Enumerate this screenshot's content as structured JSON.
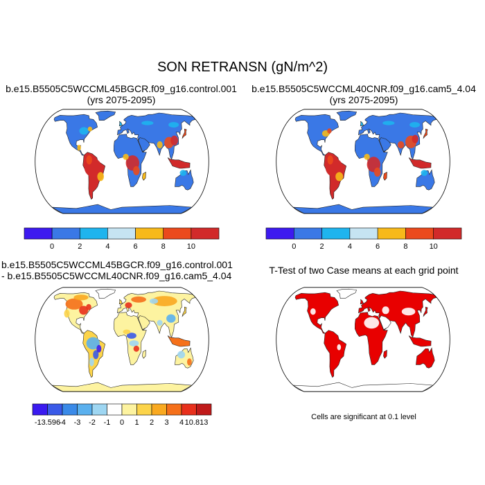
{
  "title": "SON RETRANSN (gN/m^2)",
  "panels": [
    {
      "title_line1": "b.e15.B5505C5WCCML45BGCR.f09_g16.control.001",
      "title_line2": "(yrs 2075-2095)"
    },
    {
      "title_line1": "b.e15.B5505C5WCCML40CNR.f09_g16.cam5_4.04",
      "title_line2": "(yrs 2075-2095)"
    },
    {
      "title_line1": "b.e15.B5505C5WCCML45BGCR.f09_g16.control.001",
      "title_line2": "- b.e15.B5505C5WCCML40CNR.f09_g16.cam5_4.04"
    },
    {
      "title_line1": "T-Test of two Case means at each grid point",
      "title_line2": ""
    }
  ],
  "significance_note": "Cells are significant at 0.1 level",
  "chart_data": [
    {
      "type": "heatmap",
      "subtype": "world-map",
      "panel": 1,
      "colorbar": {
        "colors": [
          "#3d1af0",
          "#3a78e6",
          "#1eb4ee",
          "#c6e4f2",
          "#f7b91a",
          "#eb4a1c",
          "#d12a2a"
        ],
        "labels": [
          "0",
          "2",
          "4",
          "6",
          "8",
          "10"
        ]
      }
    },
    {
      "type": "heatmap",
      "subtype": "world-map",
      "panel": 2,
      "colorbar": {
        "colors": [
          "#3d1af0",
          "#3a78e6",
          "#1eb4ee",
          "#c6e4f2",
          "#f7b91a",
          "#eb4a1c",
          "#d12a2a"
        ],
        "labels": [
          "0",
          "2",
          "4",
          "6",
          "8",
          "10"
        ]
      }
    },
    {
      "type": "heatmap",
      "subtype": "world-map",
      "panel": 3,
      "colorbar": {
        "colors": [
          "#3a1af0",
          "#3a5ae8",
          "#3a8ae8",
          "#5ab0ee",
          "#9ed6f2",
          "#ffffff",
          "#fdf3a0",
          "#fcd44a",
          "#f9a920",
          "#f5701a",
          "#e8301c",
          "#c01a1a"
        ],
        "labels": [
          "-13.596",
          "-4",
          "-3",
          "-2",
          "-1",
          "0",
          "1",
          "2",
          "3",
          "4",
          "10.813"
        ]
      }
    },
    {
      "type": "heatmap",
      "subtype": "world-map",
      "panel": 4,
      "colors": [
        "#e80000",
        "#ffffff"
      ]
    }
  ]
}
